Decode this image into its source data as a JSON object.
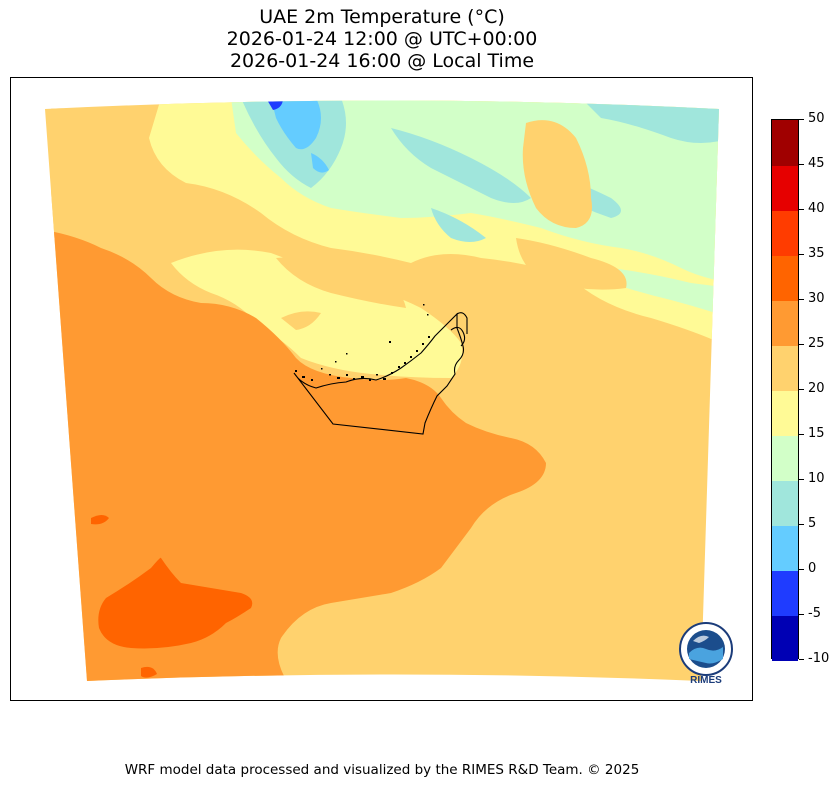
{
  "title": {
    "line1": "UAE 2m Temperature (°C)",
    "line2": "2026-01-24 12:00 @ UTC+00:00",
    "line3": "2026-01-24 16:00 @ Local Time"
  },
  "colorbar": {
    "levels": [
      -10,
      -5,
      0,
      5,
      10,
      15,
      20,
      25,
      30,
      35,
      40,
      45,
      50
    ],
    "labels": [
      "50",
      "45",
      "40",
      "35",
      "30",
      "25",
      "20",
      "15",
      "10",
      "5",
      "0",
      "-5",
      "-10"
    ],
    "colors": [
      "#0000b4",
      "#1f3cff",
      "#64ccff",
      "#a0e6dc",
      "#d2ffc8",
      "#fffa96",
      "#ffd26e",
      "#ff9a32",
      "#ff6400",
      "#ff3c00",
      "#e60000",
      "#a00000"
    ]
  },
  "map": {
    "fill_colors": {
      "orange": "#ff9a32",
      "light_orange": "#ffd26e",
      "yellow": "#fffa96",
      "light_green": "#d2ffc8",
      "aqua": "#a0e6dc",
      "sky_blue": "#64ccff",
      "deep_orange": "#ff6400",
      "blue": "#1f3cff"
    },
    "border_color": "#000000"
  },
  "logo": {
    "text": "RIMES",
    "color": "#1b3c7a"
  },
  "footer": {
    "credit": "WRF model data processed and visualized by the RIMES R&D Team. © 2025"
  }
}
